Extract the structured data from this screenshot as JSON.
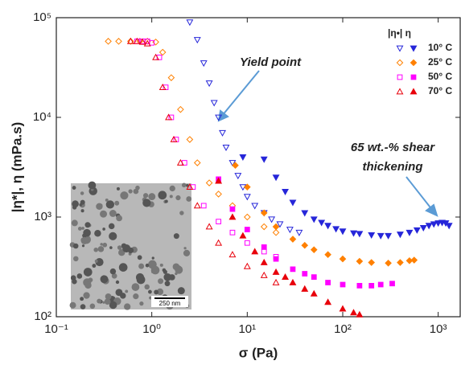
{
  "chart_data": {
    "type": "scatter",
    "x_label": "σ (Pa)",
    "y_label": "|η*|, η (mPa.s)",
    "log_x": true,
    "log_y": true,
    "xlim": [
      0.1,
      1700
    ],
    "ylim": [
      100,
      100000
    ],
    "xticks": [
      {
        "value": 0.1,
        "label": "10⁻¹"
      },
      {
        "value": 1,
        "label": "10⁰"
      },
      {
        "value": 10,
        "label": "10¹"
      },
      {
        "value": 100,
        "label": "10²"
      },
      {
        "value": 1000,
        "label": "10³"
      }
    ],
    "yticks": [
      {
        "value": 100,
        "label": "10²"
      },
      {
        "value": 1000,
        "label": "10³"
      },
      {
        "value": 10000,
        "label": "10⁴"
      },
      {
        "value": 100000,
        "label": "10⁵"
      }
    ],
    "legend_header": "|η•|  η",
    "series": [
      {
        "name": "10° C",
        "color": "#2626d9",
        "marker": "triangle-down",
        "complex_viscosity": {
          "x": [
            2.5,
            3,
            3.5,
            4,
            4.5,
            5,
            5.5,
            6,
            7,
            8,
            9,
            10,
            12,
            15,
            18,
            22,
            28,
            35
          ],
          "y": [
            90000,
            60000,
            35000,
            22000,
            14000,
            10000,
            7000,
            5000,
            3500,
            2600,
            2000,
            1600,
            1300,
            1100,
            950,
            850,
            750,
            700
          ]
        },
        "viscosity": {
          "x": [
            9,
            15,
            20,
            25,
            30,
            40,
            50,
            60,
            70,
            85,
            100,
            130,
            150,
            200,
            250,
            300,
            400,
            500,
            600,
            700,
            800,
            900,
            1000,
            1100,
            1200,
            1300
          ],
          "y": [
            4000,
            3800,
            2500,
            1800,
            1400,
            1100,
            950,
            880,
            820,
            760,
            720,
            690,
            680,
            660,
            650,
            650,
            670,
            700,
            740,
            780,
            820,
            850,
            870,
            880,
            870,
            820
          ]
        }
      },
      {
        "name": "25° C",
        "color": "#ff8000",
        "marker": "diamond",
        "complex_viscosity": {
          "x": [
            0.35,
            0.45,
            0.6,
            0.75,
            0.9,
            1.1,
            1.3,
            1.6,
            2,
            2.5,
            3,
            4,
            5,
            7,
            10,
            15,
            20
          ],
          "y": [
            58000,
            58000,
            58000,
            58000,
            58000,
            57000,
            45000,
            25000,
            12000,
            6000,
            3500,
            2200,
            1700,
            1300,
            1000,
            800,
            700
          ]
        },
        "viscosity": {
          "x": [
            7.5,
            10,
            15,
            20,
            30,
            40,
            50,
            70,
            100,
            150,
            200,
            300,
            400,
            500,
            560
          ],
          "y": [
            3300,
            2000,
            1100,
            800,
            600,
            520,
            470,
            420,
            380,
            360,
            350,
            345,
            350,
            365,
            370
          ]
        }
      },
      {
        "name": "50° C",
        "color": "#ff00ff",
        "marker": "square",
        "complex_viscosity": {
          "x": [
            0.7,
            0.8,
            0.9,
            1,
            1.2,
            1.4,
            1.6,
            1.8,
            2.2,
            2.7,
            3.5,
            5,
            7,
            10,
            15,
            20
          ],
          "y": [
            58000,
            58000,
            58000,
            56000,
            40000,
            20000,
            10000,
            6000,
            3500,
            2000,
            1300,
            900,
            700,
            550,
            450,
            400
          ]
        },
        "viscosity": {
          "x": [
            5,
            7,
            10,
            15,
            20,
            30,
            40,
            50,
            70,
            100,
            150,
            200,
            250,
            330
          ],
          "y": [
            2400,
            1200,
            750,
            500,
            380,
            300,
            270,
            250,
            220,
            210,
            205,
            205,
            210,
            215
          ]
        }
      },
      {
        "name": "70° C",
        "color": "#e8000b",
        "marker": "triangle-up",
        "complex_viscosity": {
          "x": [
            0.6,
            0.7,
            0.8,
            0.9,
            1.1,
            1.3,
            1.5,
            1.7,
            2,
            2.5,
            3,
            4,
            5,
            7,
            10,
            15,
            20
          ],
          "y": [
            58000,
            58000,
            57000,
            55000,
            40000,
            20000,
            10000,
            6000,
            3500,
            2000,
            1300,
            800,
            550,
            420,
            320,
            260,
            220
          ]
        },
        "viscosity": {
          "x": [
            5,
            7,
            9,
            12,
            15,
            20,
            25,
            30,
            40,
            50,
            70,
            100,
            130,
            150
          ],
          "y": [
            2300,
            1000,
            650,
            450,
            350,
            280,
            250,
            220,
            190,
            170,
            140,
            120,
            110,
            105
          ]
        }
      }
    ],
    "annotations": [
      {
        "lines": [
          "Yield point"
        ]
      },
      {
        "lines": [
          "65 wt.-% shear",
          "thickening"
        ]
      }
    ],
    "inset_scale_label": "250 nm"
  }
}
